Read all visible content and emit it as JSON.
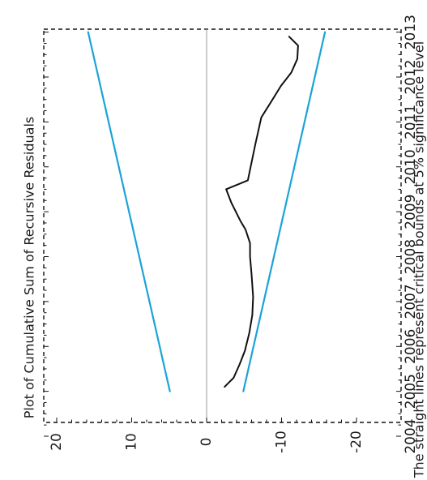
{
  "chart_data": {
    "type": "line",
    "title": "Plot of Cumulative Sum of Recursive Residuals",
    "footnote": "The straight lines represent critical bounds at 5% significance level",
    "x_ticks": [
      "2004",
      "2005",
      "2006",
      "2007",
      "2008",
      "2009",
      "2010",
      "2011",
      "2012",
      "2013"
    ],
    "xlim": [
      2004,
      2013
    ],
    "y_ticks": [
      "-20",
      "-10",
      "0",
      "10",
      "20"
    ],
    "ylim": [
      -21,
      21
    ],
    "grid": false,
    "zero_line": true,
    "colors": {
      "cusum": "#111111",
      "bounds": "#1aa3d8",
      "zero": "#aaaaaa",
      "frame": "#111111"
    },
    "series": [
      {
        "role": "cusum",
        "x": [
          2005.1,
          2005.3,
          2005.6,
          2005.9,
          2006.3,
          2006.7,
          2007.1,
          2007.6,
          2008.0,
          2008.3,
          2008.6,
          2008.8,
          2009.2,
          2009.5,
          2009.7,
          2010.1,
          2010.5,
          2010.8,
          2011.1,
          2011.5,
          2011.8,
          2012.1,
          2012.4,
          2012.7,
          2012.9
        ],
        "y": [
          -2.4,
          -3.6,
          -4.4,
          -5.1,
          -5.7,
          -6.1,
          -6.2,
          -6.0,
          -5.8,
          -5.8,
          -5.2,
          -4.5,
          -3.3,
          -2.6,
          -5.5,
          -6.0,
          -6.5,
          -6.9,
          -7.3,
          -8.8,
          -9.9,
          -11.3,
          -12.1,
          -12.2,
          -11.0
        ]
      },
      {
        "role": "upper-bound",
        "x": [
          2005,
          2013
        ],
        "y": [
          4.9,
          15.8
        ]
      },
      {
        "role": "lower-bound",
        "x": [
          2005,
          2013
        ],
        "y": [
          -4.9,
          -15.8
        ]
      }
    ]
  }
}
